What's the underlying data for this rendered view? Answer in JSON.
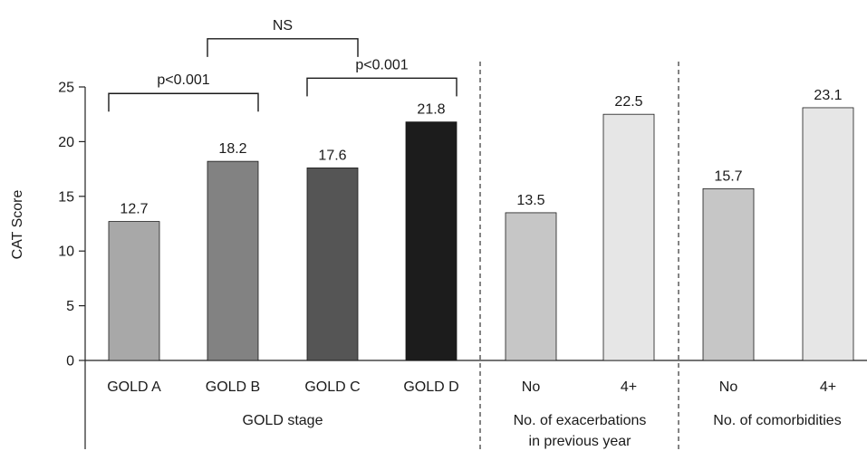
{
  "chart_data": {
    "type": "bar",
    "ylabel": "CAT Score",
    "ylim": [
      0,
      25
    ],
    "yticks": [
      0,
      5,
      10,
      15,
      20,
      25
    ],
    "grid": false,
    "bars": [
      {
        "label": "GOLD A",
        "value": 12.7,
        "value_label": "12.7",
        "color": "#a8a8a8"
      },
      {
        "label": "GOLD B",
        "value": 18.2,
        "value_label": "18.2",
        "color": "#828282"
      },
      {
        "label": "GOLD C",
        "value": 17.6,
        "value_label": "17.6",
        "color": "#555555"
      },
      {
        "label": "GOLD D",
        "value": 21.8,
        "value_label": "21.8",
        "color": "#1c1c1c"
      },
      {
        "label": "No",
        "value": 13.5,
        "value_label": "13.5",
        "color": "#c6c6c6"
      },
      {
        "label": "4+",
        "value": 22.5,
        "value_label": "22.5",
        "color": "#e6e6e6"
      },
      {
        "label": "No",
        "value": 15.7,
        "value_label": "15.7",
        "color": "#c6c6c6"
      },
      {
        "label": "4+",
        "value": 23.1,
        "value_label": "23.1",
        "color": "#e6e6e6"
      }
    ],
    "groups": [
      {
        "lines": [
          "GOLD stage"
        ]
      },
      {
        "lines": [
          "No. of exacerbations",
          "in previous year"
        ]
      },
      {
        "lines": [
          "No. of comorbidities"
        ]
      }
    ],
    "comparisons": [
      {
        "from": 0,
        "to": 1,
        "label": "p<0.001",
        "level": 24.4
      },
      {
        "from": 1,
        "to": 2,
        "label": "NS",
        "level": 29.4
      },
      {
        "from": 2,
        "to": 3,
        "label": "p<0.001",
        "level": 25.8
      }
    ]
  }
}
